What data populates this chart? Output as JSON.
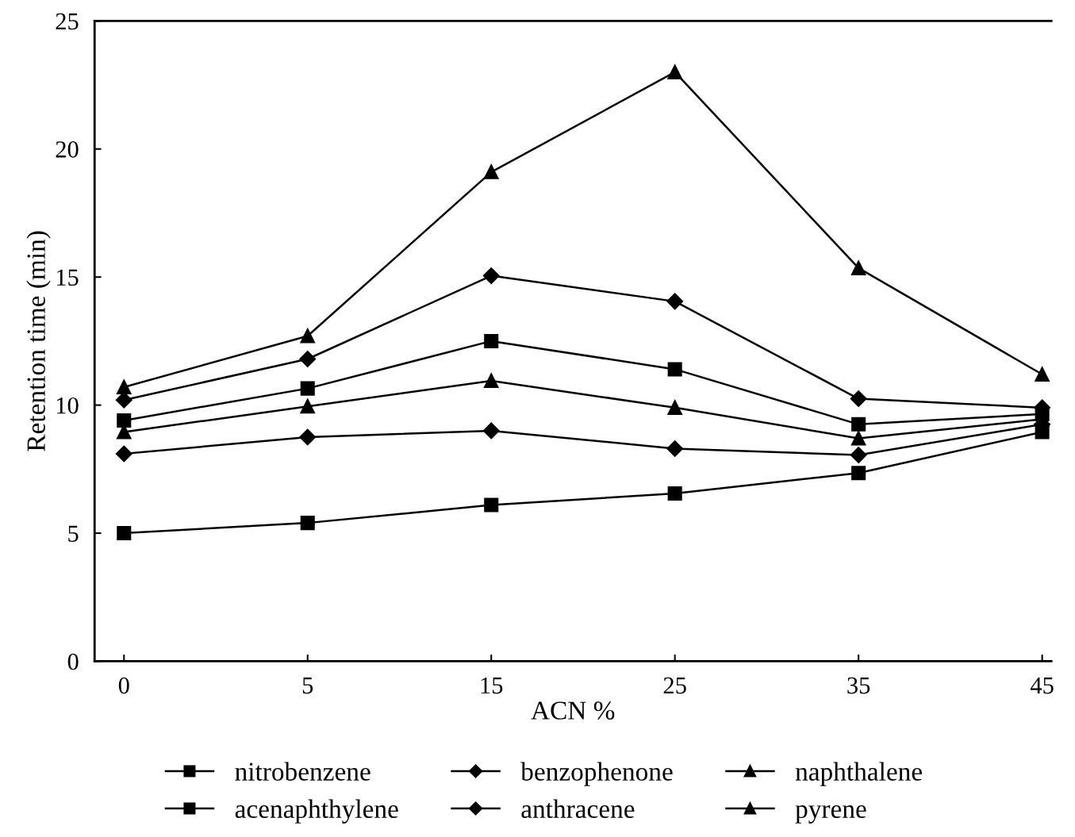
{
  "chart_data": {
    "type": "line",
    "xlabel": "ACN %",
    "ylabel": "Retention time (min)",
    "categories": [
      "0",
      "5",
      "15",
      "25",
      "35",
      "45"
    ],
    "ylim": [
      0,
      25
    ],
    "yticks": [
      {
        "value": 0,
        "label": "0"
      },
      5,
      10,
      15,
      20,
      25
    ],
    "grid": false,
    "legend": "bottom",
    "line_style": "solid",
    "series": [
      {
        "name": "nitrobenzene",
        "color": "#000000",
        "marker": "square",
        "values": [
          5.0,
          5.4,
          6.1,
          6.55,
          7.35,
          8.95
        ]
      },
      {
        "name": "benzophenone",
        "color": "#000000",
        "marker": "diamond",
        "values": [
          8.1,
          8.75,
          9.0,
          8.3,
          8.05,
          9.25
        ]
      },
      {
        "name": "naphthalene",
        "color": "#000000",
        "marker": "triangle",
        "values": [
          8.95,
          9.95,
          10.95,
          9.9,
          8.7,
          9.45
        ]
      },
      {
        "name": "acenaphthylene",
        "color": "#000000",
        "marker": "square",
        "values": [
          9.4,
          10.65,
          12.5,
          11.4,
          9.25,
          9.65
        ]
      },
      {
        "name": "anthracene",
        "color": "#000000",
        "marker": "diamond",
        "values": [
          10.2,
          11.8,
          15.05,
          14.05,
          10.25,
          9.9
        ]
      },
      {
        "name": "pyrene",
        "color": "#000000",
        "marker": "triangle",
        "values": [
          10.7,
          12.7,
          19.1,
          23.0,
          15.35,
          11.2
        ]
      }
    ]
  }
}
